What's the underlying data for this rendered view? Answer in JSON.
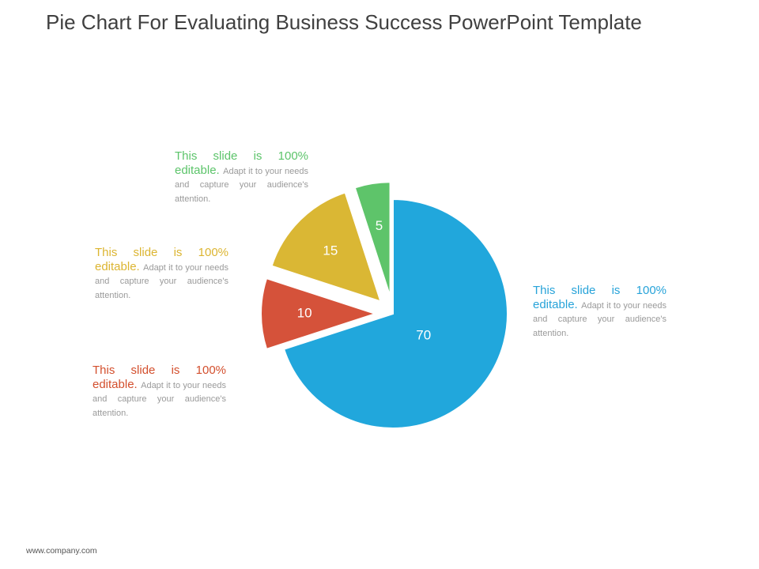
{
  "slide": {
    "title": "Pie Chart For Evaluating Business Success PowerPoint Template",
    "footer": "www.company.com"
  },
  "callouts": [
    {
      "headline": "This slide is 100% editable.",
      "body": "Adapt it to your needs and capture your audience's attention.",
      "color": "#5cc46a"
    },
    {
      "headline": "This slide is 100% editable.",
      "body": "Adapt it to your needs and capture your audience's attention.",
      "color": "#dcb531"
    },
    {
      "headline": "This slide is 100% editable.",
      "body": "Adapt it to your needs and capture your audience's attention.",
      "color": "#d34f2d"
    },
    {
      "headline": "This slide is 100% editable.",
      "body": "Adapt it to your needs and capture your audience's attention.",
      "color": "#27a3d9"
    }
  ],
  "chart_data": {
    "type": "pie",
    "categories": [
      "70",
      "10",
      "15",
      "5"
    ],
    "values": [
      70,
      10,
      15,
      5
    ],
    "colors": [
      "#21a7dc",
      "#d5523a",
      "#dab734",
      "#5ec46a"
    ],
    "exploded": [
      false,
      true,
      true,
      true
    ],
    "start": "top",
    "direction": "clockwise",
    "labels": [
      "70",
      "10",
      "15",
      "5"
    ]
  }
}
